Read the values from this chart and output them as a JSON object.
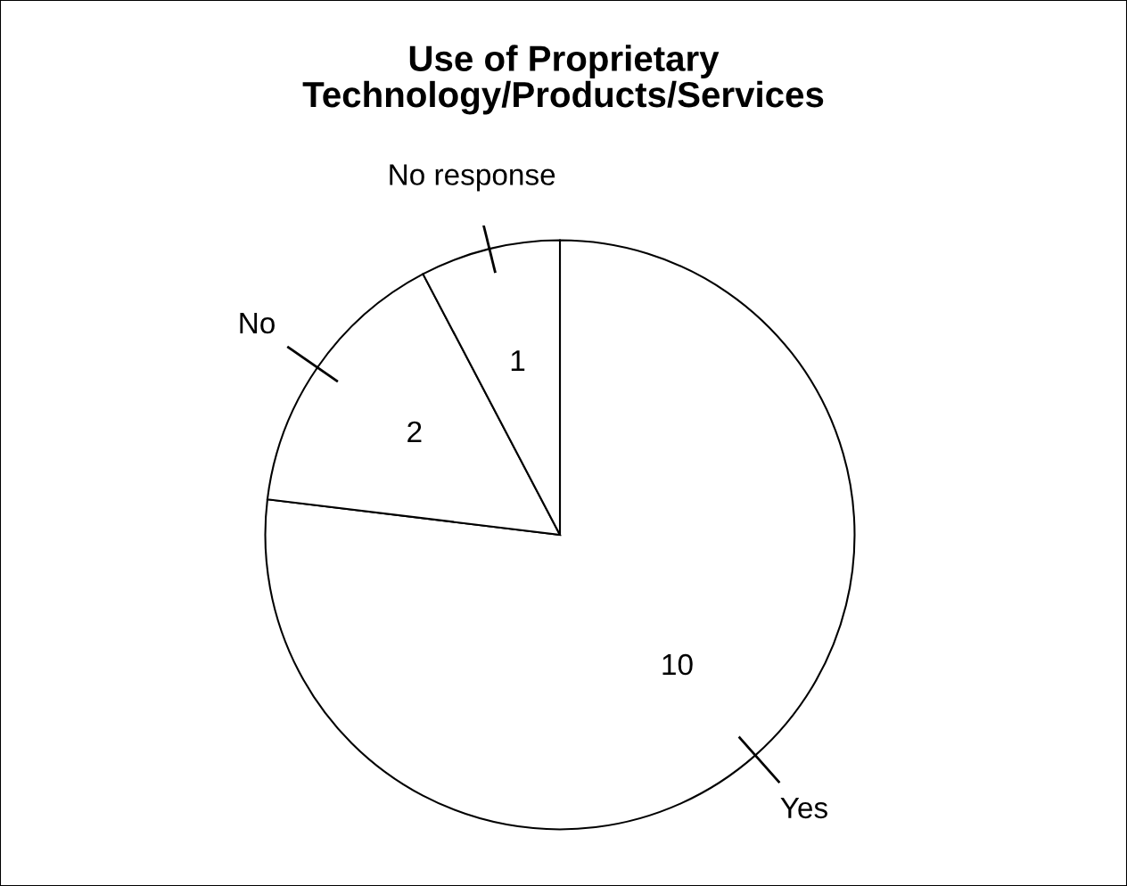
{
  "chart_data": {
    "type": "pie",
    "title": "Use of Proprietary\nTechnology/Products/Services",
    "categories": [
      "Yes",
      "No",
      "No response"
    ],
    "values": [
      10,
      2,
      1
    ],
    "colors": [
      "#ffffff",
      "#ffffff",
      "#ffffff"
    ],
    "data_labels": true
  }
}
